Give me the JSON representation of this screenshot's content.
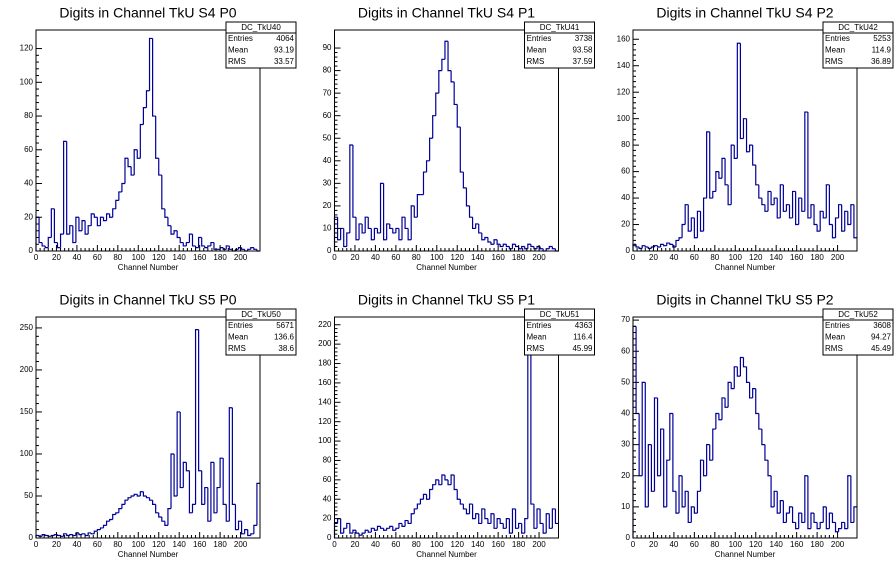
{
  "chart_data": [
    {
      "type": "histogram",
      "title": "Digits in Channel TkU S4 P0",
      "xlabel": "Channel Number",
      "stats_name": "DC_TkU40",
      "stats": [
        {
          "label": "Entries",
          "value": 4064
        },
        {
          "label": "Mean",
          "value": 93.19
        },
        {
          "label": "RMS",
          "value": 33.57
        }
      ],
      "color": "#000099",
      "bins": [
        0,
        3,
        6,
        9,
        12,
        15,
        18,
        21,
        24,
        27,
        30,
        33,
        36,
        39,
        42,
        45,
        48,
        51,
        54,
        57,
        60,
        63,
        66,
        69,
        72,
        75,
        78,
        81,
        84,
        87,
        90,
        93,
        96,
        99,
        102,
        105,
        108,
        111,
        114,
        117,
        120,
        123,
        126,
        129,
        132,
        135,
        138,
        141,
        144,
        147,
        150,
        153,
        156,
        159,
        162,
        165,
        168,
        171,
        174,
        177,
        180,
        183,
        186,
        189,
        192,
        195,
        198,
        201,
        204,
        207,
        210,
        213,
        216,
        219
      ],
      "values": [
        20,
        5,
        3,
        2,
        8,
        25,
        5,
        2,
        10,
        65,
        10,
        15,
        5,
        20,
        12,
        18,
        10,
        15,
        22,
        20,
        15,
        20,
        18,
        22,
        20,
        25,
        30,
        35,
        40,
        55,
        50,
        45,
        60,
        55,
        75,
        85,
        95,
        126,
        80,
        55,
        45,
        25,
        20,
        15,
        10,
        12,
        8,
        5,
        3,
        5,
        10,
        3,
        2,
        8,
        3,
        2,
        3,
        5,
        1,
        1,
        2,
        1,
        3,
        1,
        0,
        1,
        2,
        1,
        0,
        1,
        2,
        1,
        0
      ],
      "xlim": [
        0,
        219
      ],
      "xticks": [
        0,
        20,
        40,
        60,
        80,
        100,
        120,
        140,
        160,
        180,
        200
      ],
      "ylim": [
        0,
        131
      ],
      "yticks": [
        0,
        20,
        40,
        60,
        80,
        100,
        120
      ]
    },
    {
      "type": "histogram",
      "title": "Digits in Channel TkU S4 P1",
      "xlabel": "Channel Number",
      "stats_name": "DC_TkU41",
      "stats": [
        {
          "label": "Entries",
          "value": 3738
        },
        {
          "label": "Mean",
          "value": 93.58
        },
        {
          "label": "RMS",
          "value": 37.59
        }
      ],
      "color": "#000099",
      "bins": [
        0,
        3,
        6,
        9,
        12,
        15,
        18,
        21,
        24,
        27,
        30,
        33,
        36,
        39,
        42,
        45,
        48,
        51,
        54,
        57,
        60,
        63,
        66,
        69,
        72,
        75,
        78,
        81,
        84,
        87,
        90,
        93,
        96,
        99,
        102,
        105,
        108,
        111,
        114,
        117,
        120,
        123,
        126,
        129,
        132,
        135,
        138,
        141,
        144,
        147,
        150,
        153,
        156,
        159,
        162,
        165,
        168,
        171,
        174,
        177,
        180,
        183,
        186,
        189,
        192,
        195,
        198,
        201,
        204,
        207,
        210,
        213,
        216,
        219
      ],
      "values": [
        15,
        5,
        10,
        2,
        8,
        47,
        15,
        5,
        12,
        8,
        15,
        10,
        5,
        10,
        8,
        30,
        5,
        12,
        10,
        8,
        10,
        5,
        15,
        10,
        5,
        20,
        15,
        25,
        25,
        35,
        40,
        50,
        60,
        70,
        80,
        85,
        93,
        80,
        75,
        65,
        55,
        35,
        28,
        20,
        15,
        10,
        12,
        8,
        5,
        6,
        4,
        3,
        5,
        3,
        2,
        3,
        2,
        1,
        3,
        2,
        1,
        2,
        1,
        3,
        2,
        1,
        2,
        1,
        0,
        1,
        2,
        1,
        0
      ],
      "xlim": [
        0,
        219
      ],
      "xticks": [
        0,
        20,
        40,
        60,
        80,
        100,
        120,
        140,
        160,
        180,
        200
      ],
      "ylim": [
        0,
        98
      ],
      "yticks": [
        0,
        10,
        20,
        30,
        40,
        50,
        60,
        70,
        80,
        90
      ]
    },
    {
      "type": "histogram",
      "title": "Digits in Channel TkU S4 P2",
      "xlabel": "Channel Number",
      "stats_name": "DC_TkU42",
      "stats": [
        {
          "label": "Entries",
          "value": 5253
        },
        {
          "label": "Mean",
          "value": 114.9
        },
        {
          "label": "RMS",
          "value": 36.89
        }
      ],
      "color": "#000099",
      "bins": [
        0,
        3,
        6,
        9,
        12,
        15,
        18,
        21,
        24,
        27,
        30,
        33,
        36,
        39,
        42,
        45,
        48,
        51,
        54,
        57,
        60,
        63,
        66,
        69,
        72,
        75,
        78,
        81,
        84,
        87,
        90,
        93,
        96,
        99,
        102,
        105,
        108,
        111,
        114,
        117,
        120,
        123,
        126,
        129,
        132,
        135,
        138,
        141,
        144,
        147,
        150,
        153,
        156,
        159,
        162,
        165,
        168,
        171,
        174,
        177,
        180,
        183,
        186,
        189,
        192,
        195,
        198,
        201,
        204,
        207,
        210,
        213,
        216,
        219
      ],
      "values": [
        5,
        3,
        2,
        4,
        3,
        2,
        3,
        4,
        3,
        5,
        4,
        6,
        5,
        3,
        8,
        10,
        20,
        35,
        15,
        25,
        10,
        30,
        15,
        40,
        90,
        40,
        45,
        60,
        55,
        70,
        50,
        35,
        80,
        70,
        157,
        85,
        100,
        75,
        80,
        65,
        50,
        40,
        35,
        30,
        45,
        35,
        40,
        25,
        50,
        30,
        35,
        25,
        45,
        20,
        40,
        30,
        105,
        25,
        35,
        20,
        15,
        30,
        25,
        50,
        20,
        10,
        25,
        35,
        15,
        30,
        20,
        35,
        10
      ],
      "xlim": [
        0,
        219
      ],
      "xticks": [
        0,
        20,
        40,
        60,
        80,
        100,
        120,
        140,
        160,
        180,
        200
      ],
      "ylim": [
        0,
        167
      ],
      "yticks": [
        0,
        20,
        40,
        60,
        80,
        100,
        120,
        140,
        160
      ]
    },
    {
      "type": "histogram",
      "title": "Digits in Channel TkU S5 P0",
      "xlabel": "Channel Number",
      "stats_name": "DC_TkU50",
      "stats": [
        {
          "label": "Entries",
          "value": 5671
        },
        {
          "label": "Mean",
          "value": 136.6
        },
        {
          "label": "RMS",
          "value": 38.6
        }
      ],
      "color": "#000099",
      "bins": [
        0,
        3,
        6,
        9,
        12,
        15,
        18,
        21,
        24,
        27,
        30,
        33,
        36,
        39,
        42,
        45,
        48,
        51,
        54,
        57,
        60,
        63,
        66,
        69,
        72,
        75,
        78,
        81,
        84,
        87,
        90,
        93,
        96,
        99,
        102,
        105,
        108,
        111,
        114,
        117,
        120,
        123,
        126,
        129,
        132,
        135,
        138,
        141,
        144,
        147,
        150,
        153,
        156,
        159,
        162,
        165,
        168,
        171,
        174,
        177,
        180,
        183,
        186,
        189,
        192,
        195,
        198,
        201,
        204,
        207,
        210,
        213,
        216,
        219
      ],
      "values": [
        3,
        2,
        4,
        3,
        2,
        3,
        4,
        3,
        2,
        5,
        3,
        4,
        3,
        6,
        4,
        5,
        3,
        6,
        5,
        8,
        10,
        12,
        15,
        20,
        22,
        28,
        30,
        35,
        40,
        45,
        48,
        50,
        52,
        50,
        55,
        50,
        48,
        45,
        40,
        30,
        25,
        20,
        15,
        35,
        100,
        50,
        150,
        60,
        90,
        80,
        30,
        40,
        248,
        80,
        40,
        60,
        20,
        90,
        30,
        60,
        95,
        40,
        20,
        155,
        40,
        10,
        20,
        5,
        10,
        3,
        5,
        15,
        65
      ],
      "xlim": [
        0,
        219
      ],
      "xticks": [
        0,
        20,
        40,
        60,
        80,
        100,
        120,
        140,
        160,
        180,
        200
      ],
      "ylim": [
        0,
        263
      ],
      "yticks": [
        0,
        50,
        100,
        150,
        200,
        250
      ]
    },
    {
      "type": "histogram",
      "title": "Digits in Channel TkU S5 P1",
      "xlabel": "Channel Number",
      "stats_name": "DC_TkU51",
      "stats": [
        {
          "label": "Entries",
          "value": 4363
        },
        {
          "label": "Mean",
          "value": 116.4
        },
        {
          "label": "RMS",
          "value": 45.99
        }
      ],
      "color": "#000099",
      "bins": [
        0,
        3,
        6,
        9,
        12,
        15,
        18,
        21,
        24,
        27,
        30,
        33,
        36,
        39,
        42,
        45,
        48,
        51,
        54,
        57,
        60,
        63,
        66,
        69,
        72,
        75,
        78,
        81,
        84,
        87,
        90,
        93,
        96,
        99,
        102,
        105,
        108,
        111,
        114,
        117,
        120,
        123,
        126,
        129,
        132,
        135,
        138,
        141,
        144,
        147,
        150,
        153,
        156,
        159,
        162,
        165,
        168,
        171,
        174,
        177,
        180,
        183,
        186,
        189,
        192,
        195,
        198,
        201,
        204,
        207,
        210,
        213,
        216,
        219
      ],
      "values": [
        15,
        20,
        5,
        10,
        15,
        5,
        8,
        5,
        3,
        5,
        8,
        6,
        10,
        8,
        12,
        10,
        8,
        10,
        12,
        8,
        10,
        15,
        12,
        18,
        15,
        25,
        30,
        35,
        40,
        45,
        40,
        50,
        55,
        60,
        55,
        65,
        60,
        55,
        65,
        50,
        40,
        35,
        30,
        25,
        35,
        20,
        25,
        15,
        30,
        20,
        15,
        25,
        10,
        20,
        15,
        10,
        20,
        5,
        30,
        10,
        15,
        5,
        20,
        200,
        35,
        10,
        30,
        15,
        5,
        25,
        10,
        30,
        15
      ],
      "xlim": [
        0,
        219
      ],
      "xticks": [
        0,
        20,
        40,
        60,
        80,
        100,
        120,
        140,
        160,
        180,
        200
      ],
      "ylim": [
        0,
        228
      ],
      "yticks": [
        0,
        20,
        40,
        60,
        80,
        100,
        120,
        140,
        160,
        180,
        200,
        220
      ]
    },
    {
      "type": "histogram",
      "title": "Digits in Channel TkU S5 P2",
      "xlabel": "Channel Number",
      "stats_name": "DC_TkU52",
      "stats": [
        {
          "label": "Entries",
          "value": 3608
        },
        {
          "label": "Mean",
          "value": 94.27
        },
        {
          "label": "RMS",
          "value": 45.49
        }
      ],
      "color": "#000099",
      "bins": [
        0,
        3,
        6,
        9,
        12,
        15,
        18,
        21,
        24,
        27,
        30,
        33,
        36,
        39,
        42,
        45,
        48,
        51,
        54,
        57,
        60,
        63,
        66,
        69,
        72,
        75,
        78,
        81,
        84,
        87,
        90,
        93,
        96,
        99,
        102,
        105,
        108,
        111,
        114,
        117,
        120,
        123,
        126,
        129,
        132,
        135,
        138,
        141,
        144,
        147,
        150,
        153,
        156,
        159,
        162,
        165,
        168,
        171,
        174,
        177,
        180,
        183,
        186,
        189,
        192,
        195,
        198,
        201,
        204,
        207,
        210,
        213,
        216,
        219
      ],
      "values": [
        68,
        40,
        20,
        50,
        10,
        30,
        15,
        45,
        20,
        35,
        10,
        25,
        40,
        15,
        8,
        20,
        10,
        15,
        5,
        10,
        8,
        15,
        25,
        20,
        30,
        25,
        35,
        40,
        38,
        45,
        42,
        50,
        48,
        55,
        52,
        58,
        55,
        50,
        45,
        48,
        40,
        35,
        30,
        25,
        20,
        10,
        15,
        8,
        12,
        5,
        8,
        10,
        5,
        3,
        8,
        5,
        20,
        3,
        8,
        5,
        3,
        5,
        10,
        3,
        8,
        5,
        2,
        3,
        5,
        3,
        20,
        5,
        10
      ],
      "xlim": [
        0,
        219
      ],
      "xticks": [
        0,
        20,
        40,
        60,
        80,
        100,
        120,
        140,
        160,
        180,
        200
      ],
      "ylim": [
        0,
        71
      ],
      "yticks": [
        0,
        10,
        20,
        30,
        40,
        50,
        60,
        70
      ]
    }
  ]
}
